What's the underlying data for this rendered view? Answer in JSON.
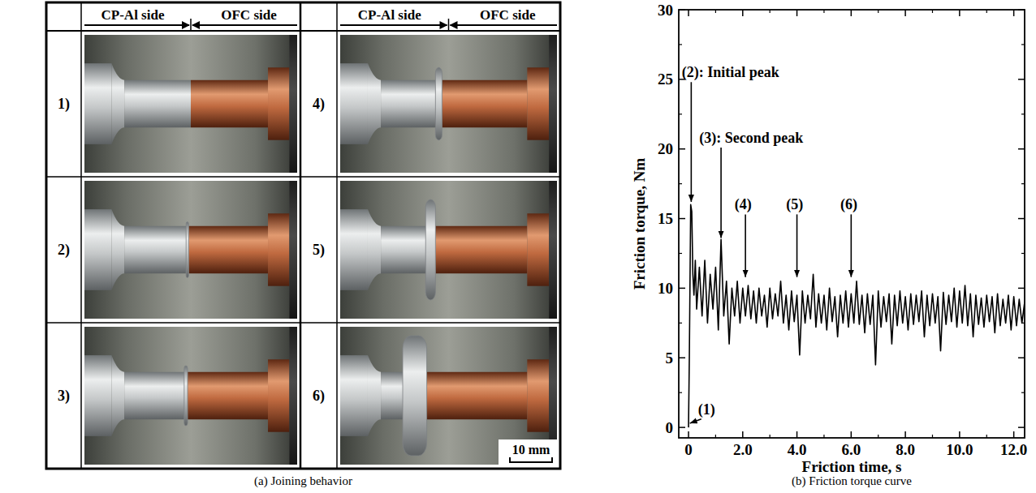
{
  "photo_panel": {
    "caption": "(a) Joining behavior",
    "header": {
      "left": "CP-Al side",
      "right": "OFC side"
    },
    "frames": [
      "1)",
      "2)",
      "3)",
      "4)",
      "5)",
      "6)"
    ],
    "scale_bar": "10 mm"
  },
  "chart_data": {
    "type": "line",
    "title": "(b) Friction torque curve",
    "x_label": "Friction time, s",
    "y_label": "Friction torque, Nm",
    "xlim": [
      -0.36,
      12.4
    ],
    "xticks": [
      0,
      {
        "value": 2,
        "label": "2.0"
      },
      {
        "value": 4,
        "label": "4.0"
      },
      {
        "value": 6,
        "label": "6.0"
      },
      {
        "value": 8,
        "label": "8.0"
      },
      {
        "value": 10,
        "label": "10.0"
      },
      {
        "value": 12,
        "label": "12.0"
      }
    ],
    "ylim": [
      -0.75,
      30
    ],
    "yticks": [
      0,
      5,
      10,
      15,
      20,
      25,
      30
    ],
    "grid": false,
    "color": "#000000",
    "x": [
      0,
      0.03,
      0.08,
      0.12,
      0.16,
      0.2,
      0.25,
      0.3,
      0.4,
      0.5,
      0.6,
      0.7,
      0.8,
      0.9,
      1.0,
      1.1,
      1.2,
      1.3,
      1.4,
      1.5,
      1.6,
      1.7,
      1.8,
      1.9,
      2.0,
      2.1,
      2.2,
      2.3,
      2.4,
      2.5,
      2.6,
      2.7,
      2.8,
      2.9,
      3.0,
      3.1,
      3.2,
      3.3,
      3.4,
      3.5,
      3.6,
      3.7,
      3.8,
      3.9,
      4.0,
      4.1,
      4.2,
      4.3,
      4.4,
      4.5,
      4.6,
      4.7,
      4.8,
      4.9,
      5.0,
      5.1,
      5.2,
      5.3,
      5.4,
      5.5,
      5.6,
      5.7,
      5.8,
      5.9,
      6.0,
      6.1,
      6.2,
      6.3,
      6.4,
      6.5,
      6.6,
      6.7,
      6.8,
      6.9,
      7.0,
      7.1,
      7.2,
      7.3,
      7.4,
      7.5,
      7.6,
      7.7,
      7.8,
      7.9,
      8.0,
      8.1,
      8.2,
      8.3,
      8.4,
      8.5,
      8.6,
      8.7,
      8.8,
      8.9,
      9.0,
      9.1,
      9.2,
      9.3,
      9.4,
      9.5,
      9.6,
      9.7,
      9.8,
      9.9,
      10.0,
      10.1,
      10.2,
      10.3,
      10.4,
      10.5,
      10.6,
      10.7,
      10.8,
      10.9,
      11.0,
      11.1,
      11.2,
      11.3,
      11.4,
      11.5,
      11.6,
      11.7,
      11.8,
      11.9,
      12.0,
      12.1,
      12.2,
      12.3,
      12.4
    ],
    "values": [
      0,
      5,
      16,
      15.5,
      11,
      9.5,
      12,
      8.5,
      11.5,
      8,
      12,
      7.5,
      11,
      8.5,
      11.5,
      7,
      13.5,
      8,
      10.5,
      6,
      10,
      8,
      10.5,
      7.5,
      10,
      8,
      10.2,
      7.8,
      9.8,
      7.5,
      10,
      8,
      9.5,
      7.2,
      10,
      7.8,
      9.6,
      8,
      10.5,
      7.5,
      9.5,
      7,
      9.8,
      7.6,
      9.5,
      5.2,
      9.8,
      7.5,
      9.5,
      7.8,
      11,
      7.2,
      9.6,
      7.5,
      9.5,
      7,
      10,
      7.6,
      9.4,
      6.5,
      9.5,
      7.5,
      9.8,
      7.2,
      9.6,
      7.5,
      10.5,
      7.4,
      9.5,
      6.8,
      9.6,
      7.4,
      9.5,
      4.5,
      9.8,
      7.2,
      9.4,
      7.6,
      9.6,
      6,
      9.5,
      7.3,
      9.8,
      7.5,
      9.4,
      7,
      9.6,
      7.4,
      9.5,
      7.6,
      9.8,
      6.5,
      9.5,
      7.3,
      9.6,
      7.5,
      9.4,
      5.5,
      9.7,
      7.4,
      9.5,
      7.6,
      10,
      7.2,
      9.8,
      7.5,
      10.2,
      7.3,
      9.6,
      6.5,
      9.5,
      7.4,
      9.3,
      7.2,
      9.5,
      7.6,
      9.4,
      6.8,
      9.6,
      7.3,
      9.2,
      7.5,
      9.5,
      7,
      9.4,
      7.3,
      9.2,
      7.5,
      9
    ],
    "annotations": [
      {
        "text": "(1)",
        "x": 0.05,
        "y": 0.3,
        "text_x": 0.35,
        "text_y": 1.3
      },
      {
        "text": "(2): Initial peak",
        "x": 0.1,
        "y": 16.2,
        "text_x": -0.25,
        "text_y": 25.5
      },
      {
        "text": "(3): Second peak",
        "x": 1.2,
        "y": 13.6,
        "text_x": 0.4,
        "text_y": 20.8
      },
      {
        "text": "(4)",
        "x": 2.1,
        "y": 10.8,
        "text_x": 1.7,
        "text_y": 16
      },
      {
        "text": "(5)",
        "x": 4.0,
        "y": 10.8,
        "text_x": 3.6,
        "text_y": 16
      },
      {
        "text": "(6)",
        "x": 6.0,
        "y": 10.8,
        "text_x": 5.6,
        "text_y": 16
      }
    ]
  }
}
